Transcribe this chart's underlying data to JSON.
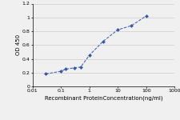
{
  "x": [
    0.03,
    0.1,
    0.15,
    0.3,
    0.5,
    1,
    3,
    10,
    30,
    100
  ],
  "y": [
    0.18,
    0.22,
    0.25,
    0.27,
    0.28,
    0.45,
    0.65,
    0.82,
    0.88,
    1.02
  ],
  "line_color": "#3355aa",
  "marker": "D",
  "marker_size": 2,
  "xlim": [
    0.01,
    1000
  ],
  "ylim": [
    0,
    1.2
  ],
  "yticks": [
    0,
    0.2,
    0.4,
    0.6,
    0.8,
    1.0,
    1.2
  ],
  "ytick_labels": [
    "0",
    "0.2",
    "0.4",
    "0.6",
    "0.8",
    "1",
    "1.2"
  ],
  "xtick_vals": [
    0.01,
    0.1,
    1,
    10,
    100,
    1000
  ],
  "xtick_labels": [
    "0.01",
    "0.1",
    "1",
    "10",
    "100",
    "1000"
  ],
  "ylabel": "OD 450",
  "xlabel": "Recombinant ProteinConcentration(ng/ml)",
  "grid_color": "#cccccc",
  "bg_color": "#f0f0f0",
  "font_size_label": 5,
  "font_size_tick": 4.5
}
